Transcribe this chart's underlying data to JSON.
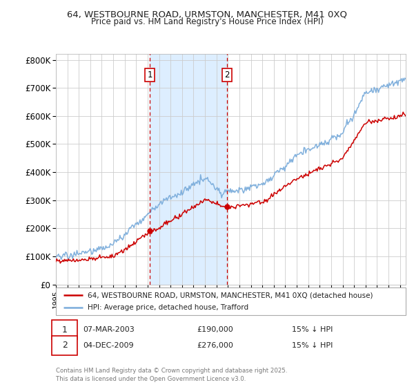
{
  "title1": "64, WESTBOURNE ROAD, URMSTON, MANCHESTER, M41 0XQ",
  "title2": "Price paid vs. HM Land Registry's House Price Index (HPI)",
  "ylabel_values": [
    "£0",
    "£100K",
    "£200K",
    "£300K",
    "£400K",
    "£500K",
    "£600K",
    "£700K",
    "£800K"
  ],
  "ylim": [
    0,
    820000
  ],
  "xlim_start": 1995.0,
  "xlim_end": 2025.5,
  "marker1_year": 2003.18,
  "marker2_year": 2009.92,
  "marker1_value": 190000,
  "marker2_value": 276000,
  "legend_red_label": "64, WESTBOURNE ROAD, URMSTON, MANCHESTER, M41 0XQ (detached house)",
  "legend_blue_label": "HPI: Average price, detached house, Trafford",
  "annotation1_date": "07-MAR-2003",
  "annotation1_price": "£190,000",
  "annotation1_hpi": "15% ↓ HPI",
  "annotation2_date": "04-DEC-2009",
  "annotation2_price": "£276,000",
  "annotation2_hpi": "15% ↓ HPI",
  "footer": "Contains HM Land Registry data © Crown copyright and database right 2025.\nThis data is licensed under the Open Government Licence v3.0.",
  "red_color": "#cc0000",
  "blue_color": "#7aacdb",
  "shade_color": "#ddeeff",
  "grid_color": "#cccccc",
  "background_color": "#ffffff"
}
